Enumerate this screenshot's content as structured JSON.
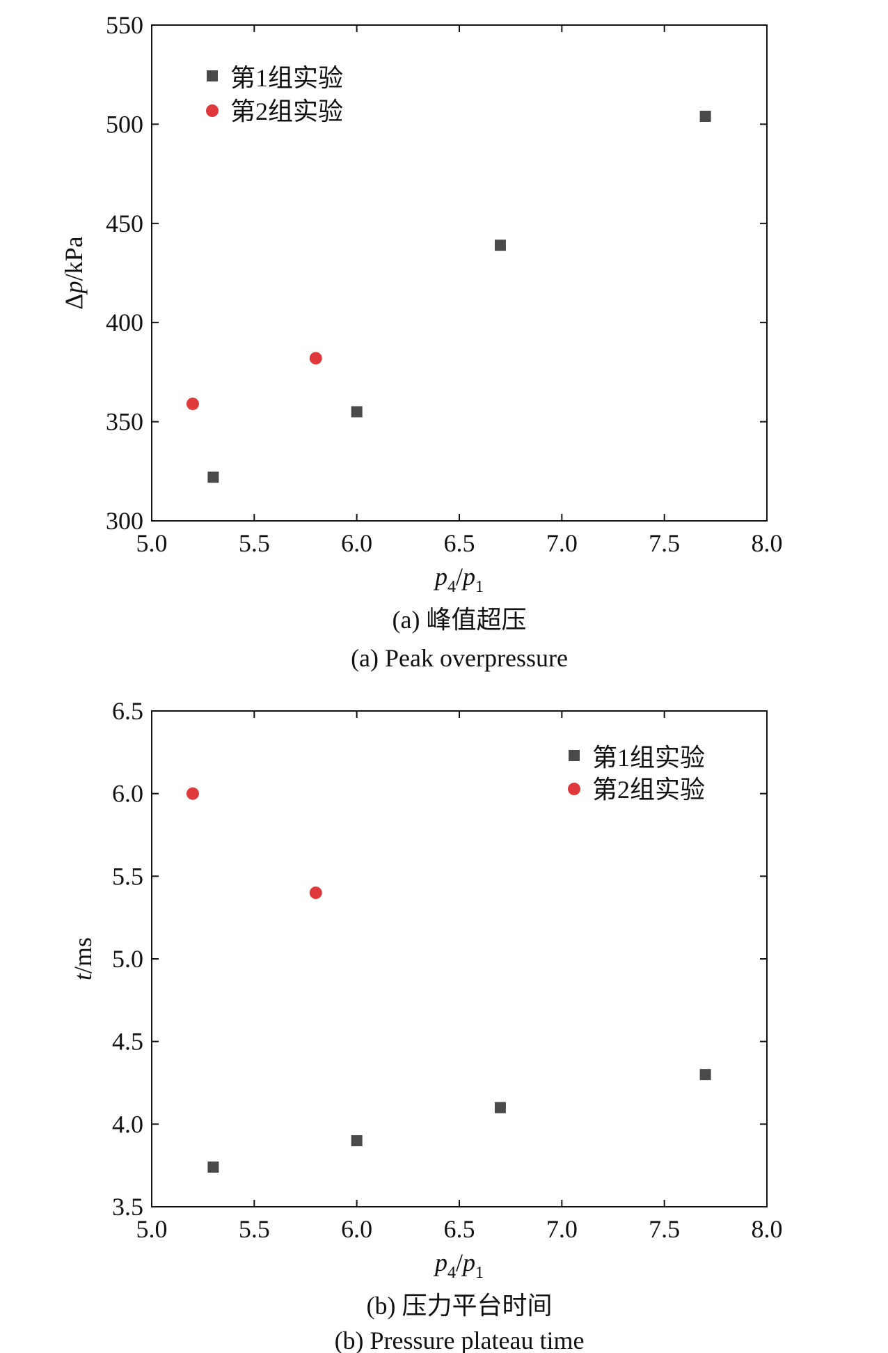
{
  "colors": {
    "series1": "#4a4a4a",
    "series2": "#e0393c",
    "axis": "#111111"
  },
  "chart_data": [
    {
      "type": "scatter",
      "xlabel": {
        "main": "p",
        "sub1": "4",
        "slash": "/",
        "main2": "p",
        "sub2": "1"
      },
      "ylabel": {
        "prefix": "Δ",
        "var": "p",
        "unit": "/kPa"
      },
      "xlim": [
        5.0,
        8.0
      ],
      "ylim": [
        300,
        550
      ],
      "xticks": [
        5.0,
        5.5,
        6.0,
        6.5,
        7.0,
        7.5,
        8.0
      ],
      "xtick_labels": [
        "5.0",
        "5.5",
        "6.0",
        "6.5",
        "7.0",
        "7.5",
        "8.0"
      ],
      "yticks": [
        300,
        350,
        400,
        450,
        500,
        550
      ],
      "ytick_labels": [
        "300",
        "350",
        "400",
        "450",
        "500",
        "550"
      ],
      "legend_position": "top-left",
      "grid": false,
      "series": [
        {
          "name": "第1组实验",
          "marker": "square",
          "color": "#4a4a4a",
          "x": [
            5.3,
            6.0,
            6.7,
            7.7
          ],
          "y": [
            322,
            355,
            439,
            504
          ]
        },
        {
          "name": "第2组实验",
          "marker": "circle",
          "color": "#e0393c",
          "x": [
            5.2,
            5.8
          ],
          "y": [
            359,
            382
          ]
        }
      ],
      "caption_cn": "(a) 峰值超压",
      "caption_en": "(a) Peak overpressure"
    },
    {
      "type": "scatter",
      "xlabel": {
        "main": "p",
        "sub1": "4",
        "slash": "/",
        "main2": "p",
        "sub2": "1"
      },
      "ylabel": {
        "prefix": "",
        "var": "t",
        "unit": "/ms"
      },
      "xlim": [
        5.0,
        8.0
      ],
      "ylim": [
        3.5,
        6.5
      ],
      "xticks": [
        5.0,
        5.5,
        6.0,
        6.5,
        7.0,
        7.5,
        8.0
      ],
      "xtick_labels": [
        "5.0",
        "5.5",
        "6.0",
        "6.5",
        "7.0",
        "7.5",
        "8.0"
      ],
      "yticks": [
        3.5,
        4.0,
        4.5,
        5.0,
        5.5,
        6.0,
        6.5
      ],
      "ytick_labels": [
        "3.5",
        "4.0",
        "4.5",
        "5.0",
        "5.5",
        "6.0",
        "6.5"
      ],
      "legend_position": "top-right",
      "grid": false,
      "series": [
        {
          "name": "第1组实验",
          "marker": "square",
          "color": "#4a4a4a",
          "x": [
            5.3,
            6.0,
            6.7,
            7.7
          ],
          "y": [
            3.74,
            3.9,
            4.1,
            4.3
          ]
        },
        {
          "name": "第2组实验",
          "marker": "circle",
          "color": "#e0393c",
          "x": [
            5.2,
            5.8
          ],
          "y": [
            6.0,
            5.4
          ]
        }
      ],
      "caption_cn": "(b) 压力平台时间",
      "caption_en": "(b) Pressure plateau time"
    }
  ]
}
